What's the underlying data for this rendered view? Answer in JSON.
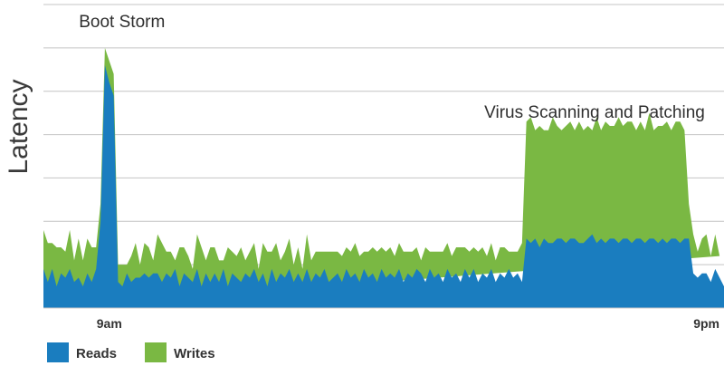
{
  "chart_data": {
    "type": "area",
    "stacked": true,
    "title": "",
    "xlabel": "",
    "ylabel": "Latency",
    "y_ticks_labeled": false,
    "grid": "horizontal",
    "legend_position": "bottom-left",
    "x_tick_labels": [
      {
        "label": "9am",
        "at": 15
      },
      {
        "label": "9pm",
        "at": 151
      }
    ],
    "annotations": [
      {
        "text": "Boot Storm",
        "at": 15
      },
      {
        "text": "Virus Scanning and Patching",
        "at": 151
      }
    ],
    "ylim": [
      0,
      7
    ],
    "series": [
      {
        "name": "Reads",
        "color": "#1a7dbf",
        "values": [
          0.9,
          0.6,
          0.9,
          0.5,
          0.8,
          0.7,
          0.9,
          0.6,
          0.7,
          0.5,
          0.8,
          0.6,
          0.9,
          2.0,
          5.6,
          5.2,
          4.9,
          0.6,
          0.5,
          0.8,
          0.6,
          0.7,
          0.7,
          0.8,
          0.7,
          0.8,
          0.8,
          0.6,
          0.8,
          0.7,
          0.9,
          0.5,
          0.8,
          0.7,
          0.6,
          0.9,
          0.5,
          0.8,
          0.6,
          0.8,
          0.6,
          0.9,
          0.5,
          0.8,
          0.7,
          0.6,
          0.8,
          0.7,
          0.9,
          0.6,
          0.8,
          0.5,
          0.9,
          0.6,
          0.8,
          0.7,
          0.9,
          0.6,
          0.8,
          0.6,
          0.9,
          0.6,
          0.8,
          0.7,
          0.9,
          0.6,
          0.7,
          0.8,
          0.6,
          0.9,
          0.7,
          0.8,
          0.6,
          0.9,
          0.7,
          0.8,
          0.6,
          0.9,
          0.7,
          0.8,
          0.7,
          0.9,
          0.6,
          0.8,
          0.7,
          0.9,
          0.8,
          0.6,
          0.9,
          0.7,
          0.8,
          0.6,
          0.9,
          0.7,
          0.8,
          0.6,
          0.9,
          0.7,
          0.9,
          0.6,
          0.8,
          0.7,
          0.9,
          0.6,
          0.8,
          0.7,
          0.9,
          0.7,
          0.8,
          0.6,
          1.6,
          1.5,
          1.6,
          1.4,
          1.6,
          1.5,
          1.5,
          1.6,
          1.6,
          1.5,
          1.6,
          1.6,
          1.5,
          1.5,
          1.6,
          1.7,
          1.5,
          1.6,
          1.5,
          1.6,
          1.6,
          1.5,
          1.6,
          1.6,
          1.5,
          1.6,
          1.6,
          1.5,
          1.6,
          1.6,
          1.5,
          1.6,
          1.5,
          1.6,
          1.6,
          1.5,
          1.6,
          1.6,
          0.8,
          0.7,
          0.8,
          0.8,
          0.6,
          0.9,
          0.7,
          0.5
        ],
        "note": "approximate readings"
      },
      {
        "name": "Writes",
        "color": "#7ab843",
        "values": [
          0.9,
          0.9,
          0.6,
          0.9,
          0.6,
          0.6,
          0.9,
          0.5,
          0.9,
          0.6,
          0.8,
          0.8,
          0.5,
          0.4,
          0.4,
          0.5,
          0.5,
          0.4,
          0.5,
          0.2,
          0.6,
          0.8,
          0.3,
          0.7,
          0.7,
          0.3,
          0.9,
          0.9,
          0.5,
          0.6,
          0.2,
          0.9,
          0.6,
          0.5,
          0.3,
          0.8,
          0.9,
          0.3,
          0.8,
          0.6,
          0.5,
          0.2,
          0.9,
          0.5,
          0.5,
          0.8,
          0.3,
          0.6,
          0.6,
          0.3,
          0.7,
          0.8,
          0.4,
          0.9,
          0.3,
          0.6,
          0.7,
          0.4,
          0.6,
          0.3,
          0.8,
          0.5,
          0.5,
          0.6,
          0.4,
          0.7,
          0.6,
          0.5,
          0.6,
          0.5,
          0.6,
          0.7,
          0.6,
          0.4,
          0.6,
          0.6,
          0.7,
          0.5,
          0.6,
          0.6,
          0.5,
          0.6,
          0.7,
          0.5,
          0.6,
          0.5,
          0.3,
          0.8,
          0.4,
          0.6,
          0.5,
          0.7,
          0.6,
          0.5,
          0.6,
          0.8,
          0.5,
          0.6,
          0.5,
          0.7,
          0.6,
          0.5,
          0.6,
          0.5,
          0.6,
          0.7,
          0.4,
          0.6,
          0.5,
          0.9,
          2.7,
          2.9,
          2.5,
          2.8,
          2.5,
          2.6,
          2.9,
          2.6,
          2.5,
          2.7,
          2.7,
          2.5,
          2.8,
          2.6,
          2.6,
          2.4,
          2.9,
          2.5,
          2.8,
          2.6,
          2.6,
          2.9,
          2.6,
          2.7,
          2.8,
          2.5,
          2.7,
          2.6,
          2.9,
          2.5,
          2.7,
          2.6,
          2.8,
          2.5,
          2.7,
          2.8,
          2.5,
          0.8,
          0.9,
          0.6,
          0.8,
          0.9,
          0.6,
          0.8,
          0.5
        ]
      }
    ]
  }
}
